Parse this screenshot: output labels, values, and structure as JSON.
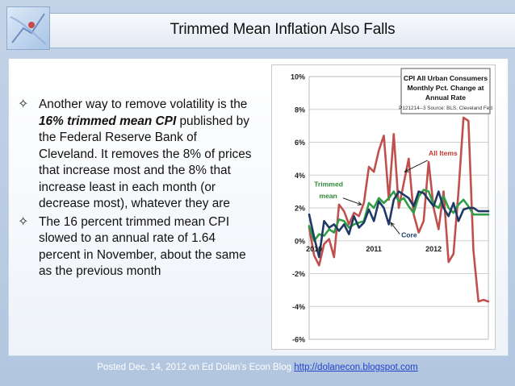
{
  "slide": {
    "title": "Trimmed Mean Inflation Also Falls",
    "bullets": [
      {
        "pre": "Another way to remove volatility is the ",
        "emph": "16% trimmed mean CPI",
        "post": " published by the Federal Reserve Bank of Cleveland. It removes the 8% of prices that increase most and the 8% that increase least in each month (or decrease most), whatever they are"
      },
      {
        "pre": "The 16 percent trimmed mean CPI slowed to an annual rate of 1.64 percent in November, about the same as the previous month",
        "emph": "",
        "post": ""
      }
    ],
    "footer_text": "Posted Dec. 14, 2012 on Ed Dolan’s Econ Blog ",
    "footer_link": "http://dolanecon.blogspot.com"
  },
  "chart_data": {
    "type": "line",
    "title": "CPI All Urban Consumers Monthly Pct. Change at Annual Rate",
    "subtitle": "P121214--3 Source: BLS, Cleveland Fed",
    "ylim": [
      -6,
      10
    ],
    "yticks": [
      -6,
      -4,
      -2,
      0,
      2,
      4,
      6,
      8,
      10
    ],
    "ytick_labels": [
      "-6%",
      "-4%",
      "-2%",
      "0%",
      "2%",
      "4%",
      "6%",
      "8%",
      "10%"
    ],
    "xlim": [
      0,
      36
    ],
    "xtick_labels": [
      {
        "label": "2010",
        "x": 1
      },
      {
        "label": "2011",
        "x": 13
      },
      {
        "label": "2012",
        "x": 25
      }
    ],
    "annotations": [
      {
        "text": "All Items",
        "x": 24,
        "y": 5.2,
        "color": "#c0392b"
      },
      {
        "text": "Trimmed",
        "x": 1,
        "y": 3.3,
        "color": "#2e8b3a"
      },
      {
        "text": "mean",
        "x": 2,
        "y": 2.6,
        "color": "#2e8b3a"
      },
      {
        "text": "Core",
        "x": 18.5,
        "y": 0.2,
        "color": "#1f3b66"
      }
    ],
    "series": [
      {
        "name": "All Items",
        "color": "#c0504d",
        "values": [
          0.8,
          -0.9,
          -1.5,
          -0.2,
          0.1,
          -1.0,
          2.2,
          1.8,
          1.0,
          1.7,
          1.5,
          2.3,
          4.5,
          4.2,
          5.5,
          6.4,
          2.5,
          6.5,
          2.0,
          3.5,
          5.0,
          1.6,
          0.5,
          1.2,
          4.8,
          2.0,
          0.7,
          3.0,
          -1.3,
          -0.8,
          3.0,
          7.5,
          7.3,
          -0.6,
          -3.7,
          -3.6,
          -3.7
        ]
      },
      {
        "name": "Trimmed mean",
        "color": "#2f9e44",
        "values": [
          0.9,
          0.0,
          0.4,
          0.3,
          0.7,
          0.5,
          1.3,
          1.2,
          0.8,
          1.0,
          1.1,
          1.2,
          2.3,
          2.0,
          2.6,
          2.3,
          2.6,
          3.0,
          2.4,
          2.6,
          2.1,
          1.7,
          2.7,
          3.1,
          3.0,
          2.2,
          2.0,
          2.7,
          2.0,
          1.7,
          2.2,
          2.5,
          2.1,
          1.6,
          1.6,
          1.6,
          1.6
        ]
      },
      {
        "name": "Core",
        "color": "#1f3864",
        "values": [
          1.6,
          0.2,
          -1.0,
          1.2,
          0.8,
          1.0,
          0.6,
          1.0,
          0.4,
          1.5,
          0.8,
          1.1,
          1.9,
          1.2,
          2.4,
          2.0,
          1.0,
          2.5,
          3.0,
          2.8,
          2.6,
          2.1,
          3.0,
          2.9,
          2.5,
          2.1,
          3.0,
          2.0,
          1.5,
          2.3,
          1.2,
          1.9,
          2.0,
          2.0,
          1.8,
          1.8,
          1.8
        ]
      }
    ]
  }
}
